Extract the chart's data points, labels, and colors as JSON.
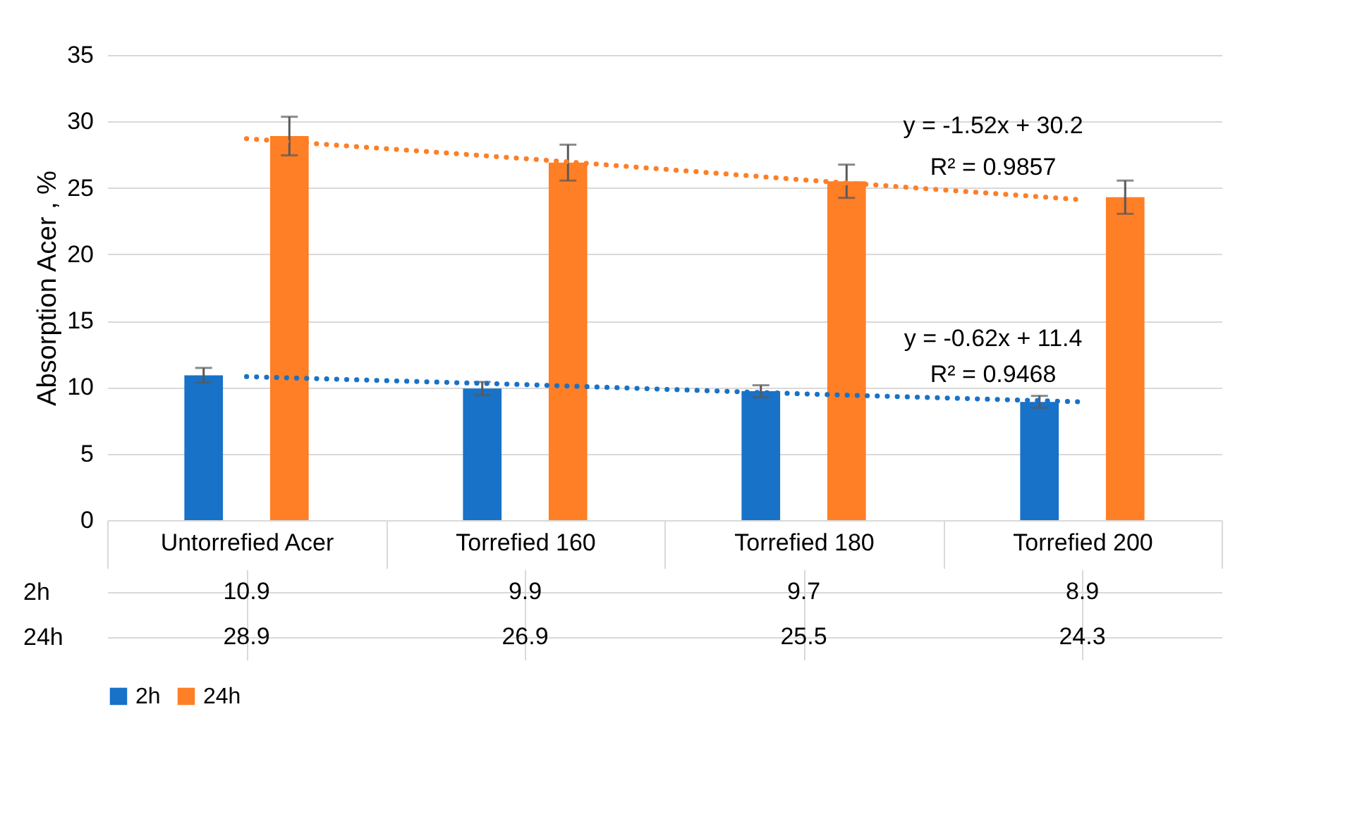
{
  "chart_data": {
    "type": "bar",
    "ylabel": "Absorption Acer , %",
    "categories": [
      "Untorrefied  Acer",
      "Torrefied 160",
      "Torrefied 180",
      "Torrefied 200"
    ],
    "series": [
      {
        "name": "2h",
        "color": "#1872c8",
        "values": [
          10.9,
          9.9,
          9.7,
          8.9
        ],
        "errors": [
          0.55,
          0.5,
          0.45,
          0.45
        ],
        "value_labels": [
          "10.9",
          "9.9",
          "9.7",
          "8.9"
        ]
      },
      {
        "name": "24h",
        "color": "#fe7f26",
        "values": [
          28.9,
          26.9,
          25.5,
          24.3
        ],
        "errors": [
          1.45,
          1.35,
          1.25,
          1.25
        ],
        "value_labels": [
          "28.9",
          "26.9",
          "25.5",
          "24.3"
        ]
      },
      {
        "type": "line",
        "color": "#fe7f26",
        "line_style": "dotted",
        "values": [
          28.7,
          27.2,
          25.6,
          24.1
        ]
      },
      {
        "type": "line",
        "color": "#1872c8",
        "line_style": "dotted",
        "values": [
          10.8,
          10.2,
          9.5,
          8.9
        ]
      }
    ],
    "ylim": [
      0,
      35
    ],
    "yticks": [
      0,
      5,
      10,
      15,
      20,
      25,
      30,
      35
    ],
    "grid": "y",
    "legend": "bottom",
    "annotations": [
      "y = -1.52x + 30.2",
      "R² = 0.9857",
      "y = -0.62x + 11.4",
      "R² = 0.9468"
    ]
  }
}
